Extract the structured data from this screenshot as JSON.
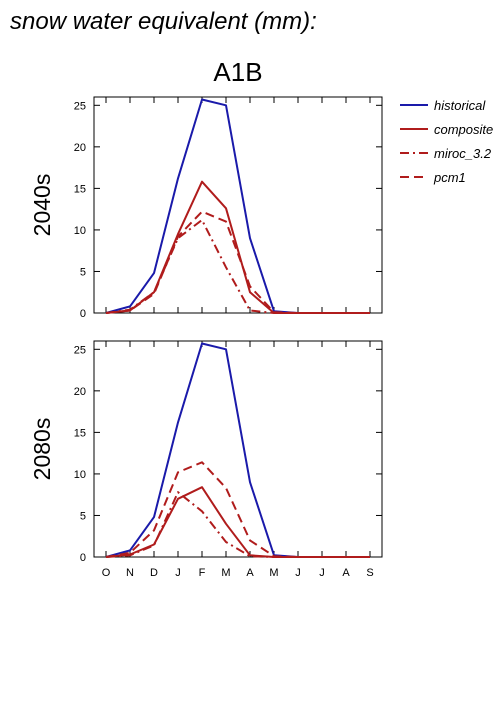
{
  "page_title": "snow water equivalent (mm):",
  "colors": {
    "historical": "#1a1aaa",
    "projection": "#b01c1c",
    "axis": "#000000"
  },
  "chart_data": {
    "type": "line",
    "scenario": "A1B",
    "x": [
      "O",
      "N",
      "D",
      "J",
      "F",
      "M",
      "A",
      "M",
      "J",
      "J",
      "A",
      "S"
    ],
    "ylim": [
      0,
      26
    ],
    "yticks": [
      0,
      5,
      10,
      15,
      20,
      25
    ],
    "legend": {
      "position": "top-right",
      "entries": [
        {
          "name": "historical",
          "style": "solid",
          "color": "#1a1aaa"
        },
        {
          "name": "composite",
          "style": "solid",
          "color": "#b01c1c"
        },
        {
          "name": "miroc_3.2",
          "style": "dashdot",
          "color": "#b01c1c"
        },
        {
          "name": "pcm1",
          "style": "dashed",
          "color": "#b01c1c"
        }
      ]
    },
    "panels": [
      {
        "label": "2040s",
        "series": [
          {
            "name": "historical",
            "values": [
              0,
              0.8,
              4.8,
              16.2,
              25.7,
              25.0,
              9.0,
              0.2,
              0,
              0,
              0,
              0
            ]
          },
          {
            "name": "composite",
            "values": [
              0,
              0.3,
              2.5,
              9.5,
              15.8,
              12.6,
              2.5,
              0,
              0,
              0,
              0,
              0
            ]
          },
          {
            "name": "miroc_3.2",
            "values": [
              0,
              0.4,
              2.5,
              9.0,
              11.2,
              5.5,
              0.3,
              0,
              0,
              0,
              0,
              0
            ]
          },
          {
            "name": "pcm1",
            "values": [
              0,
              0.3,
              2.3,
              9.2,
              12.2,
              11.0,
              3.2,
              0.1,
              0,
              0,
              0,
              0
            ]
          }
        ]
      },
      {
        "label": "2080s",
        "series": [
          {
            "name": "historical",
            "values": [
              0,
              0.8,
              4.8,
              16.2,
              25.7,
              25.0,
              9.0,
              0.2,
              0,
              0,
              0,
              0
            ]
          },
          {
            "name": "composite",
            "values": [
              0,
              0.3,
              1.5,
              7.0,
              8.4,
              4.0,
              0.2,
              0,
              0,
              0,
              0,
              0
            ]
          },
          {
            "name": "miroc_3.2",
            "values": [
              0,
              0.2,
              1.4,
              7.8,
              5.5,
              1.8,
              0.1,
              0,
              0,
              0,
              0,
              0
            ]
          },
          {
            "name": "pcm1",
            "values": [
              0,
              0.5,
              3.2,
              10.2,
              11.4,
              8.3,
              2.0,
              0.1,
              0,
              0,
              0,
              0
            ]
          }
        ]
      }
    ]
  }
}
